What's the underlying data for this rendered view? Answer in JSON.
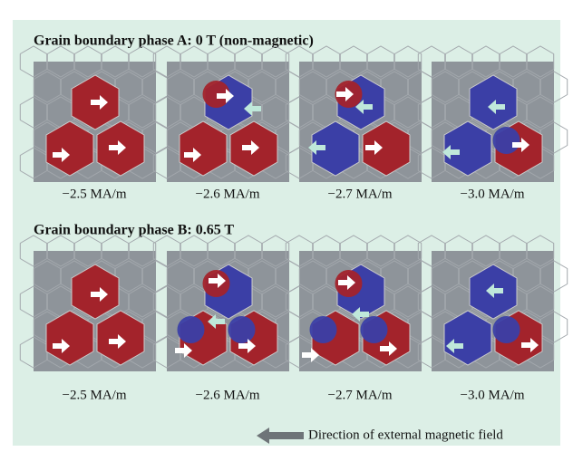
{
  "sections": [
    {
      "title": "Grain boundary phase A: 0 T (non-magnetic)",
      "captions": [
        "−2.5 MA/m",
        "−2.6 MA/m",
        "−2.7 MA/m",
        "−3.0 MA/m"
      ]
    },
    {
      "title": "Grain boundary phase B: 0.65 T",
      "captions": [
        "−2.5 MA/m",
        "−2.6 MA/m",
        "−2.7 MA/m",
        "−3.0 MA/m"
      ]
    }
  ],
  "legend": "Direction of external magnetic field"
}
